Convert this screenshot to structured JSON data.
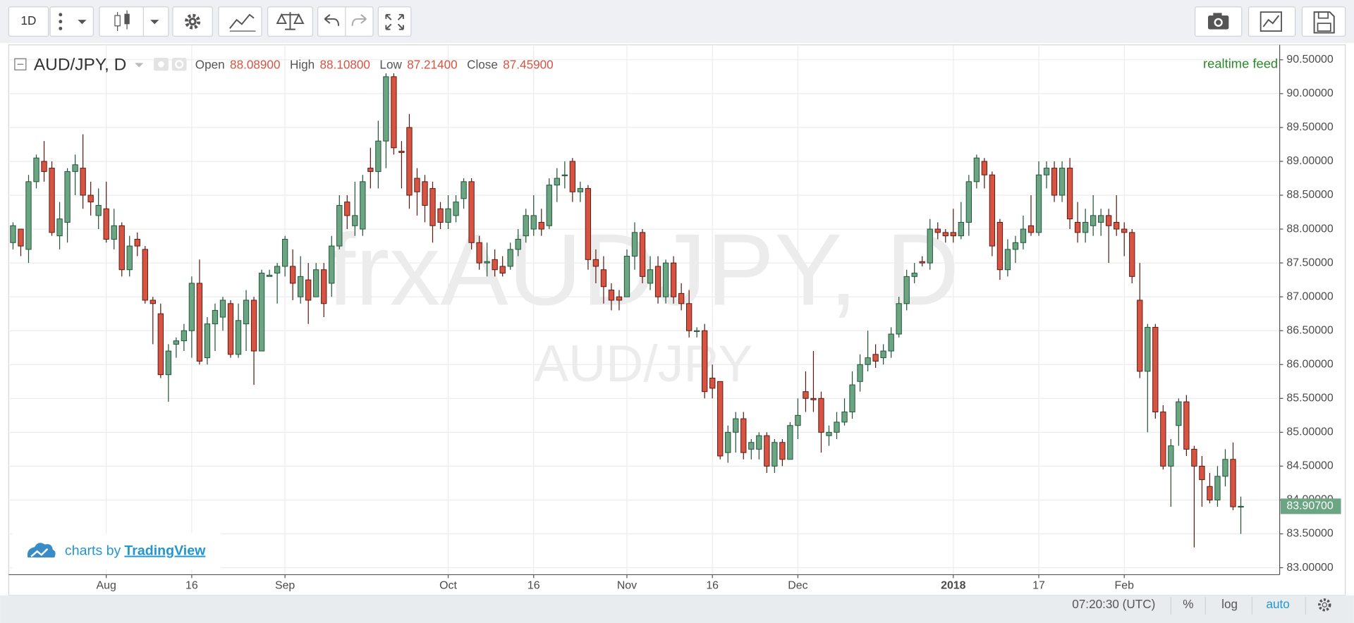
{
  "toolbar": {
    "interval": "1D"
  },
  "chart_data": {
    "type": "candlestick",
    "title": "AUD/JPY, D",
    "watermark": "frxAUDJPY, D",
    "watermark_subtitle": "AUD/JPY",
    "feed": "realtime feed",
    "readout": [
      {
        "label": "Open",
        "value": "88.08900"
      },
      {
        "label": "High",
        "value": "88.10800"
      },
      {
        "label": "Low",
        "value": "87.21400"
      },
      {
        "label": "Close",
        "value": "87.45900"
      }
    ],
    "categories": [
      null,
      null,
      null,
      null,
      null,
      null,
      null,
      null,
      null,
      null,
      null,
      null,
      "Aug",
      null,
      null,
      null,
      null,
      null,
      null,
      null,
      null,
      null,
      null,
      "16",
      null,
      null,
      null,
      null,
      null,
      null,
      null,
      null,
      null,
      null,
      null,
      "Sep",
      null,
      null,
      null,
      null,
      null,
      null,
      null,
      null,
      null,
      null,
      null,
      null,
      null,
      null,
      null,
      null,
      null,
      null,
      null,
      null,
      "Oct",
      null,
      null,
      null,
      null,
      null,
      null,
      null,
      null,
      null,
      null,
      "16",
      null,
      null,
      null,
      null,
      null,
      null,
      null,
      null,
      null,
      null,
      null,
      "Nov",
      null,
      null,
      null,
      null,
      null,
      null,
      null,
      null,
      null,
      null,
      "16",
      null,
      null,
      null,
      null,
      null,
      null,
      null,
      null,
      null,
      null,
      "Dec",
      null,
      null,
      null,
      null,
      null,
      null,
      null,
      null,
      null,
      null,
      null,
      null,
      null,
      null,
      null,
      null,
      null,
      null,
      null,
      "2018",
      null,
      null,
      null,
      null,
      null,
      null,
      null,
      null,
      null,
      null,
      "17",
      null,
      null,
      null,
      null,
      null,
      null,
      null,
      null,
      null,
      null,
      "Feb",
      null,
      null,
      null,
      null,
      null,
      null,
      null,
      null,
      null,
      null,
      null,
      null,
      null,
      null,
      null
    ],
    "open": [
      87.8,
      88.0,
      87.7,
      88.7,
      89.0,
      88.9,
      87.9,
      88.1,
      88.85,
      88.9,
      88.5,
      88.2,
      88.3,
      87.85,
      88.05,
      87.4,
      87.85,
      87.7,
      86.95,
      86.75,
      85.85,
      86.3,
      86.35,
      86.5,
      87.2,
      86.1,
      86.6,
      86.7,
      86.9,
      86.15,
      86.6,
      86.95,
      86.2,
      87.3,
      87.35,
      87.45,
      87.45,
      87.0,
      87.25,
      87.0,
      87.4,
      87.2,
      87.75,
      88.4,
      88.05,
      88.0,
      88.9,
      88.85,
      89.3,
      90.25,
      89.15,
      89.5,
      88.75,
      88.7,
      88.6,
      88.3,
      88.1,
      88.2,
      88.45,
      88.7,
      87.8,
      87.5,
      87.55,
      87.45,
      87.45,
      87.7,
      87.9,
      88.0,
      88.1,
      88.05,
      88.65,
      88.8,
      89.0,
      88.55,
      88.6,
      87.55,
      87.4,
      87.1,
      87.0,
      87.0,
      87.6,
      87.95,
      87.2,
      87.45,
      87.0,
      87.5,
      87.05,
      86.9,
      86.5,
      86.5,
      85.8,
      85.75,
      84.7,
      85.0,
      85.2,
      84.75,
      84.75,
      84.95,
      84.5,
      84.85,
      84.6,
      85.1,
      85.6,
      85.5,
      85.5,
      84.95,
      85.0,
      85.15,
      85.3,
      85.75,
      86.0,
      86.15,
      86.1,
      86.2,
      86.45,
      86.9,
      87.3,
      87.52,
      87.5,
      88.0,
      87.95,
      87.95,
      87.9,
      88.1,
      88.7,
      89.0,
      88.8,
      88.1,
      87.4,
      87.7,
      87.8,
      88.05,
      87.95,
      88.8,
      88.9,
      88.5,
      88.9,
      88.1,
      87.95,
      88.05,
      88.1,
      88.2,
      88.1,
      88.0,
      87.95,
      86.95,
      85.9,
      86.55,
      85.3,
      84.5,
      85.1,
      85.45,
      84.75,
      84.5,
      84.2,
      84.0,
      84.35,
      84.6,
      83.9
    ],
    "high": [
      88.1,
      88.0,
      88.8,
      89.1,
      89.3,
      89.0,
      88.4,
      88.9,
      89.1,
      89.4,
      88.7,
      88.6,
      88.7,
      88.3,
      88.1,
      87.9,
      87.95,
      87.75,
      87.0,
      86.9,
      86.3,
      86.4,
      86.6,
      87.3,
      87.55,
      86.7,
      86.9,
      87.0,
      86.95,
      86.9,
      87.1,
      87.0,
      87.4,
      87.4,
      87.5,
      87.9,
      87.7,
      87.6,
      87.5,
      87.5,
      87.5,
      87.9,
      88.5,
      88.5,
      88.7,
      88.8,
      89.2,
      89.6,
      90.3,
      90.3,
      89.3,
      89.7,
      88.9,
      88.8,
      88.7,
      88.4,
      88.5,
      88.5,
      88.75,
      88.75,
      87.9,
      87.8,
      87.7,
      87.6,
      87.8,
      88.0,
      88.3,
      88.5,
      88.3,
      88.75,
      88.9,
      89.0,
      89.05,
      88.7,
      88.65,
      87.7,
      87.6,
      87.2,
      87.1,
      87.7,
      88.1,
      88.0,
      87.6,
      87.6,
      87.55,
      87.6,
      87.2,
      87.1,
      86.55,
      86.6,
      86.0,
      85.75,
      85.1,
      85.3,
      85.3,
      84.9,
      85.0,
      85.0,
      84.9,
      84.9,
      85.15,
      85.5,
      85.9,
      86.2,
      85.6,
      85.1,
      85.3,
      85.5,
      85.9,
      86.15,
      86.5,
      86.3,
      86.3,
      86.55,
      87.0,
      87.4,
      87.5,
      87.6,
      88.15,
      88.1,
      88.0,
      88.3,
      88.4,
      88.8,
      89.1,
      89.05,
      88.85,
      88.15,
      87.85,
      87.9,
      88.2,
      88.5,
      89.0,
      89.0,
      89.0,
      89.0,
      89.05,
      88.4,
      88.3,
      88.5,
      88.3,
      88.3,
      88.5,
      88.1,
      88.0,
      87.5,
      86.6,
      86.6,
      85.4,
      84.9,
      85.5,
      85.55,
      84.8,
      84.65,
      84.4,
      84.5,
      84.75,
      84.85,
      84.05
    ],
    "low": [
      87.7,
      87.6,
      87.5,
      88.6,
      88.7,
      87.9,
      87.7,
      87.8,
      88.5,
      88.3,
      88.2,
      88.0,
      87.8,
      87.7,
      87.3,
      87.3,
      87.6,
      86.9,
      86.3,
      85.8,
      85.45,
      86.1,
      86.2,
      86.1,
      86.0,
      86.0,
      86.2,
      86.5,
      86.1,
      86.1,
      86.2,
      85.7,
      86.2,
      87.3,
      86.9,
      87.3,
      86.95,
      86.9,
      86.6,
      87.0,
      86.7,
      87.0,
      87.7,
      88.0,
      87.9,
      87.9,
      88.6,
      88.6,
      88.9,
      89.1,
      88.6,
      88.3,
      88.2,
      88.1,
      87.8,
      88.0,
      88.0,
      88.1,
      88.3,
      87.7,
      87.4,
      87.3,
      87.3,
      87.3,
      87.4,
      87.6,
      87.8,
      87.9,
      87.9,
      88.0,
      88.4,
      88.6,
      88.4,
      88.4,
      87.4,
      87.2,
      86.9,
      86.8,
      86.8,
      87.0,
      87.4,
      87.2,
      87.1,
      86.9,
      86.9,
      86.9,
      86.8,
      86.4,
      86.4,
      85.5,
      85.5,
      84.6,
      84.55,
      84.7,
      84.6,
      84.6,
      84.6,
      84.4,
      84.4,
      84.5,
      84.6,
      84.9,
      85.3,
      85.3,
      84.7,
      84.8,
      84.9,
      85.1,
      85.2,
      85.6,
      85.9,
      85.95,
      86.0,
      86.1,
      86.4,
      86.8,
      87.2,
      87.45,
      87.4,
      87.85,
      87.8,
      87.8,
      87.85,
      87.9,
      88.6,
      88.6,
      87.6,
      87.25,
      87.3,
      87.5,
      87.7,
      87.9,
      87.9,
      88.6,
      88.4,
      88.4,
      88.0,
      87.8,
      87.8,
      87.9,
      87.9,
      87.5,
      87.9,
      87.6,
      87.2,
      85.8,
      85.0,
      85.2,
      84.45,
      83.9,
      84.8,
      84.65,
      83.3,
      83.9,
      83.95,
      83.9,
      84.2,
      83.85,
      83.5
    ],
    "close": [
      88.05,
      87.75,
      88.7,
      89.05,
      88.85,
      87.95,
      88.15,
      88.85,
      88.95,
      88.5,
      88.4,
      88.35,
      87.85,
      88.05,
      87.4,
      87.75,
      87.75,
      86.95,
      86.9,
      85.85,
      86.2,
      86.35,
      86.5,
      87.2,
      86.05,
      86.6,
      86.8,
      86.95,
      86.15,
      86.65,
      86.95,
      86.2,
      87.35,
      87.32,
      87.45,
      87.85,
      87.2,
      87.3,
      86.95,
      87.4,
      86.9,
      87.75,
      88.35,
      88.2,
      88.2,
      88.7,
      88.85,
      89.3,
      90.25,
      89.2,
      89.13,
      88.5,
      88.55,
      88.35,
      88.05,
      88.1,
      88.3,
      88.4,
      88.7,
      87.8,
      87.5,
      87.52,
      87.4,
      87.35,
      87.7,
      87.85,
      88.2,
      88.2,
      88.0,
      88.65,
      88.75,
      88.8,
      88.55,
      88.6,
      87.55,
      87.45,
      87.15,
      86.95,
      86.95,
      87.6,
      87.95,
      87.3,
      87.4,
      87.0,
      87.5,
      87.0,
      86.9,
      86.5,
      86.5,
      85.6,
      85.65,
      84.65,
      85.0,
      85.2,
      84.7,
      84.85,
      84.95,
      84.5,
      84.85,
      84.6,
      85.1,
      85.25,
      85.5,
      85.48,
      85.0,
      85.0,
      85.15,
      85.3,
      85.7,
      86.0,
      86.1,
      86.05,
      86.2,
      86.45,
      86.9,
      87.3,
      87.35,
      87.5,
      88.0,
      87.95,
      87.9,
      87.9,
      88.1,
      88.7,
      89.05,
      88.8,
      87.75,
      87.4,
      87.7,
      87.8,
      88.0,
      87.95,
      88.8,
      88.9,
      88.5,
      88.9,
      88.15,
      87.95,
      88.1,
      88.2,
      88.2,
      88.05,
      88.0,
      87.95,
      87.3,
      85.9,
      86.55,
      85.3,
      84.5,
      84.8,
      85.45,
      84.75,
      84.5,
      84.3,
      84.0,
      84.35,
      84.6,
      83.9,
      83.907
    ],
    "up_color": "#6ba583",
    "up_border": "#225437",
    "down_color": "#d75442",
    "down_border": "#5b1a13",
    "ylim": [
      82.91,
      90.72
    ],
    "yticks": [
      {
        "value": 83,
        "label": "83.00000"
      },
      {
        "value": 83.5,
        "label": "83.50000"
      },
      {
        "value": 84,
        "label": "84.00000"
      },
      {
        "value": 84.5,
        "label": "84.50000"
      },
      {
        "value": 85,
        "label": "85.00000"
      },
      {
        "value": 85.5,
        "label": "85.50000"
      },
      {
        "value": 86,
        "label": "86.00000"
      },
      {
        "value": 86.5,
        "label": "86.50000"
      },
      {
        "value": 87,
        "label": "87.00000"
      },
      {
        "value": 87.5,
        "label": "87.50000"
      },
      {
        "value": 88,
        "label": "88.00000"
      },
      {
        "value": 88.5,
        "label": "88.50000"
      },
      {
        "value": 89,
        "label": "89.00000"
      },
      {
        "value": 89.5,
        "label": "89.50000"
      },
      {
        "value": 90,
        "label": "90.00000"
      },
      {
        "value": 90.5,
        "label": "90.50000"
      }
    ],
    "grid": true,
    "last_price": {
      "value": 83.907,
      "label": "83.90700"
    }
  },
  "branding": {
    "prefix": "charts by",
    "name": "TradingView"
  },
  "status_bar": {
    "time": "07:20:30 (UTC)",
    "percent": "%",
    "log": "log",
    "auto": "auto"
  }
}
